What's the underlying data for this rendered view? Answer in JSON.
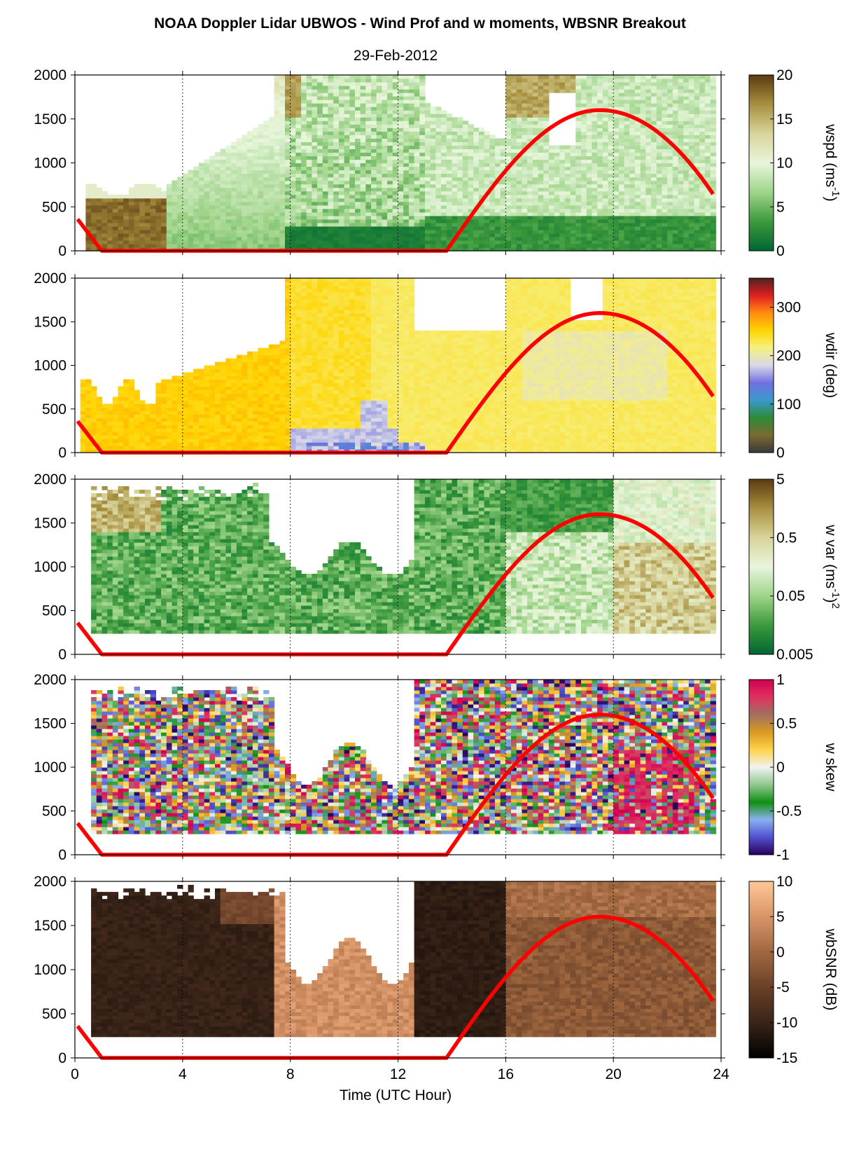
{
  "figure": {
    "title": "NOAA Doppler Lidar UBWOS - Wind Prof and w moments, WBSNR Breakout",
    "date": "29-Feb-2012",
    "xlabel": "Time (UTC Hour)"
  },
  "chart_data": [
    {
      "type": "heatmap",
      "name": "wspd",
      "cbar_label": "wspd (ms",
      "cbar_label_sup": "-1",
      "cbar_label_end": ")",
      "cbar_ticks": [
        "0",
        "5",
        "10",
        "15",
        "20"
      ],
      "cbar_range": [
        0,
        20
      ],
      "colormap": [
        "#006633",
        "#3c9a3c",
        "#9fd48a",
        "#e8f6dc",
        "#d8d49a",
        "#a89040",
        "#5c3a10"
      ],
      "x_ticks": [
        "0",
        "4",
        "8",
        "12",
        "16",
        "20",
        "24"
      ],
      "y_ticks": [
        "0",
        "500",
        "1000",
        "1500",
        "2000"
      ],
      "xlim": [
        0,
        24
      ],
      "ylim": [
        0,
        2000
      ],
      "overlay_curve": "red"
    },
    {
      "type": "heatmap",
      "name": "wdir",
      "cbar_label": "wdir (deg)",
      "cbar_ticks": [
        "0",
        "100",
        "200",
        "300"
      ],
      "cbar_range": [
        0,
        360
      ],
      "colormap": [
        "#3a3a3a",
        "#7a6a30",
        "#2e8b3a",
        "#3a9acc",
        "#7070e0",
        "#d8d8e8",
        "#f6f080",
        "#ffd400",
        "#ff8c10",
        "#e02020",
        "#502020"
      ],
      "x_ticks": [
        "0",
        "4",
        "8",
        "12",
        "16",
        "20",
        "24"
      ],
      "y_ticks": [
        "0",
        "500",
        "1000",
        "1500",
        "2000"
      ],
      "xlim": [
        0,
        24
      ],
      "ylim": [
        0,
        2000
      ],
      "overlay_curve": "red"
    },
    {
      "type": "heatmap",
      "name": "w var",
      "cbar_label": "w var (ms",
      "cbar_label_sup": "-1",
      "cbar_label_end": ")",
      "cbar_label_sup2": "2",
      "cbar_ticks": [
        "0.005",
        "0.05",
        "0.5",
        "5"
      ],
      "cbar_scale": "log",
      "cbar_range": [
        0.005,
        5
      ],
      "colormap": [
        "#006633",
        "#3c9a3c",
        "#9fd48a",
        "#e8f6dc",
        "#d8d49a",
        "#a89040",
        "#5c3a10"
      ],
      "x_ticks": [
        "0",
        "4",
        "8",
        "12",
        "16",
        "20",
        "24"
      ],
      "y_ticks": [
        "0",
        "500",
        "1000",
        "1500",
        "2000"
      ],
      "xlim": [
        0,
        24
      ],
      "ylim": [
        0,
        2000
      ],
      "overlay_curve": "red"
    },
    {
      "type": "heatmap",
      "name": "w skew",
      "cbar_label": "w skew",
      "cbar_ticks": [
        "-1",
        "-0.5",
        "0",
        "0.5",
        "1"
      ],
      "cbar_range": [
        -1,
        1
      ],
      "colormap": [
        "#2a005a",
        "#5050d0",
        "#8ab0f0",
        "#109010",
        "#90c890",
        "#f2f2f2",
        "#ffd24a",
        "#d89a20",
        "#a07060",
        "#e03060",
        "#d00050"
      ],
      "x_ticks": [
        "0",
        "4",
        "8",
        "12",
        "16",
        "20",
        "24"
      ],
      "y_ticks": [
        "0",
        "500",
        "1000",
        "1500",
        "2000"
      ],
      "xlim": [
        0,
        24
      ],
      "ylim": [
        0,
        2000
      ],
      "overlay_curve": "red"
    },
    {
      "type": "heatmap",
      "name": "wbSNR",
      "cbar_label": "wbSNR (dB)",
      "cbar_ticks": [
        "-15",
        "-10",
        "-5",
        "0",
        "5",
        "10"
      ],
      "cbar_range": [
        -15,
        10
      ],
      "colormap": [
        "#000000",
        "#3a2418",
        "#6a4028",
        "#a06840",
        "#d89468",
        "#ffc896"
      ],
      "x_ticks": [
        "0",
        "4",
        "8",
        "12",
        "16",
        "20",
        "24"
      ],
      "y_ticks": [
        "0",
        "500",
        "1000",
        "1500",
        "2000"
      ],
      "xlim": [
        0,
        24
      ],
      "ylim": [
        0,
        2000
      ],
      "overlay_curve": "red"
    }
  ]
}
